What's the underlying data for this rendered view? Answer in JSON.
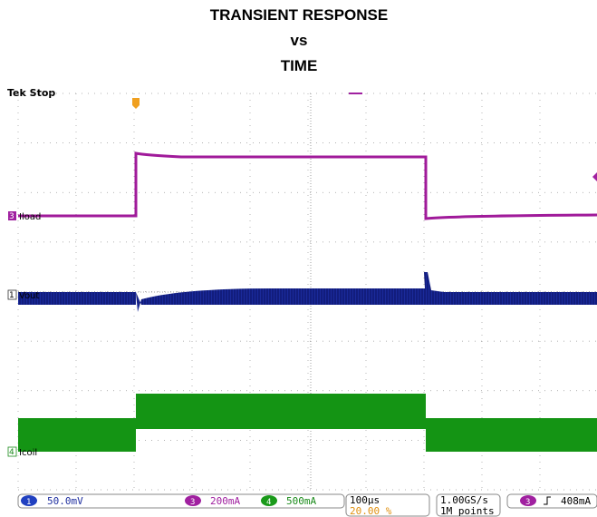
{
  "title": [
    "TRANSIENT RESPONSE",
    "vs",
    "TIME"
  ],
  "header": "Tek Stop",
  "traces": [
    {
      "marker": "3",
      "label": "Iload"
    },
    {
      "marker": "1",
      "label": "Vout"
    },
    {
      "marker": "4",
      "label": "Icoil"
    }
  ],
  "status": {
    "channels": [
      {
        "id": "1",
        "scale": "50.0mV"
      },
      {
        "id": "3",
        "scale": "200mA"
      },
      {
        "id": "4",
        "scale": "500mA"
      }
    ],
    "timebase": "100µs",
    "position": "20.00 %",
    "sample_rate": "1.00GS/s",
    "record": "1M points",
    "trigger": {
      "source": "3",
      "level": "408mA"
    }
  }
}
